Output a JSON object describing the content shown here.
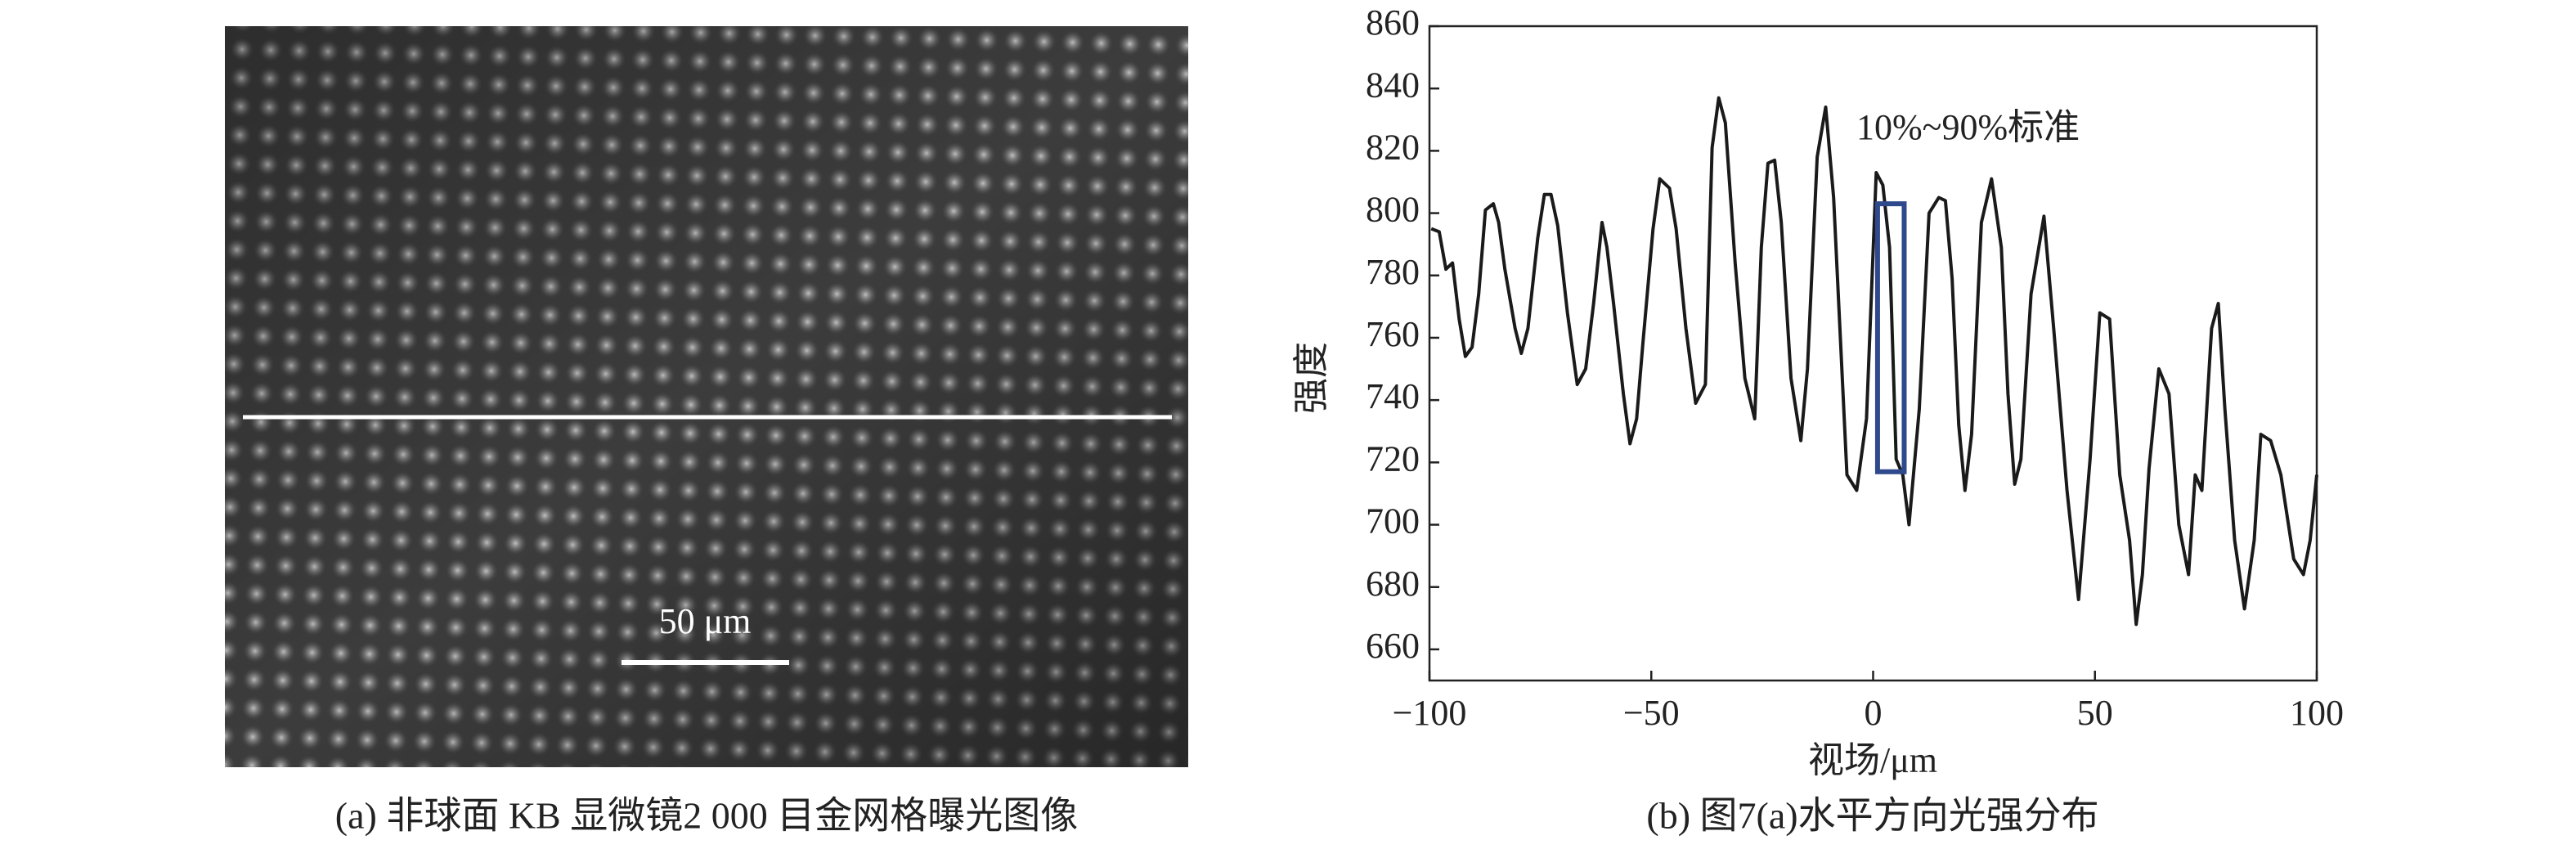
{
  "figure_a": {
    "caption": "(a) 非球面 KB 显微镜2 000 目金网格曝光图像",
    "scale_bar_label": "50 μm"
  },
  "chart_data": {
    "type": "line",
    "caption": "(b) 图7(a)水平方向光强分布",
    "x_label": "视场/μm",
    "y_label": "强度",
    "annotation": "10%~90%标准",
    "highlight": {
      "x": [
        1,
        7
      ],
      "y": [
        717,
        803
      ],
      "color": "#2e4a8c"
    },
    "xlim": [
      -100,
      100
    ],
    "ylim": [
      650,
      860
    ],
    "xticks": [
      {
        "value": -100,
        "label": "−100"
      },
      {
        "value": -50,
        "label": "−50"
      },
      0,
      50,
      100
    ],
    "yticks": [
      660,
      680,
      700,
      720,
      740,
      760,
      780,
      800,
      820,
      840,
      860
    ],
    "series": [
      {
        "color": "#1a1a1a",
        "x": [
          -99.6,
          -97.8,
          -96.3,
          -94.8,
          -93.3,
          -91.9,
          -90.4,
          -88.9,
          -87.4,
          -85.6,
          -84.4,
          -83.0,
          -80.7,
          -79.3,
          -77.8,
          -75.6,
          -74.1,
          -72.6,
          -71.1,
          -68.9,
          -66.7,
          -64.8,
          -63.0,
          -61.1,
          -60.0,
          -58.5,
          -56.3,
          -54.8,
          -53.3,
          -51.9,
          -49.6,
          -48.1,
          -45.9,
          -44.4,
          -42.2,
          -40.0,
          -37.8,
          -36.3,
          -34.8,
          -33.3,
          -31.1,
          -28.9,
          -26.7,
          -25.2,
          -23.7,
          -22.2,
          -20.7,
          -18.5,
          -16.3,
          -14.8,
          -12.6,
          -10.7,
          -8.9,
          -5.9,
          -3.7,
          -1.5,
          0.7,
          2.2,
          3.7,
          5.2,
          6.7,
          8.1,
          10.4,
          12.6,
          14.8,
          16.3,
          17.8,
          19.3,
          20.7,
          22.2,
          24.4,
          26.7,
          28.9,
          30.4,
          31.9,
          33.3,
          35.6,
          38.5,
          40.7,
          43.7,
          46.3,
          48.9,
          51.1,
          53.3,
          55.6,
          57.8,
          59.3,
          60.7,
          62.2,
          64.4,
          66.7,
          68.9,
          71.1,
          72.6,
          74.1,
          76.3,
          77.8,
          79.3,
          81.5,
          83.7,
          85.9,
          87.4,
          89.6,
          91.9,
          94.8,
          97.0,
          98.5,
          100
        ],
        "values": [
          795,
          794,
          782,
          784,
          766,
          754,
          757,
          774,
          801,
          803,
          797,
          782,
          763,
          755,
          763,
          792,
          806,
          806,
          796,
          768,
          745,
          750,
          771,
          797,
          789,
          771,
          742,
          726,
          734,
          758,
          795,
          811,
          808,
          795,
          763,
          739,
          745,
          821,
          837,
          829,
          784,
          747,
          734,
          789,
          816,
          817,
          797,
          747,
          727,
          750,
          818,
          834,
          805,
          716,
          711,
          734,
          813,
          809,
          789,
          721,
          716,
          700,
          737,
          800,
          805,
          804,
          779,
          732,
          711,
          729,
          797,
          811,
          789,
          742,
          713,
          721,
          774,
          799,
          763,
          711,
          676,
          721,
          768,
          766,
          716,
          695,
          668,
          684,
          718,
          750,
          742,
          700,
          684,
          716,
          711,
          763,
          771,
          737,
          695,
          673,
          695,
          729,
          727,
          716,
          689,
          684,
          695,
          716
        ]
      }
    ]
  }
}
